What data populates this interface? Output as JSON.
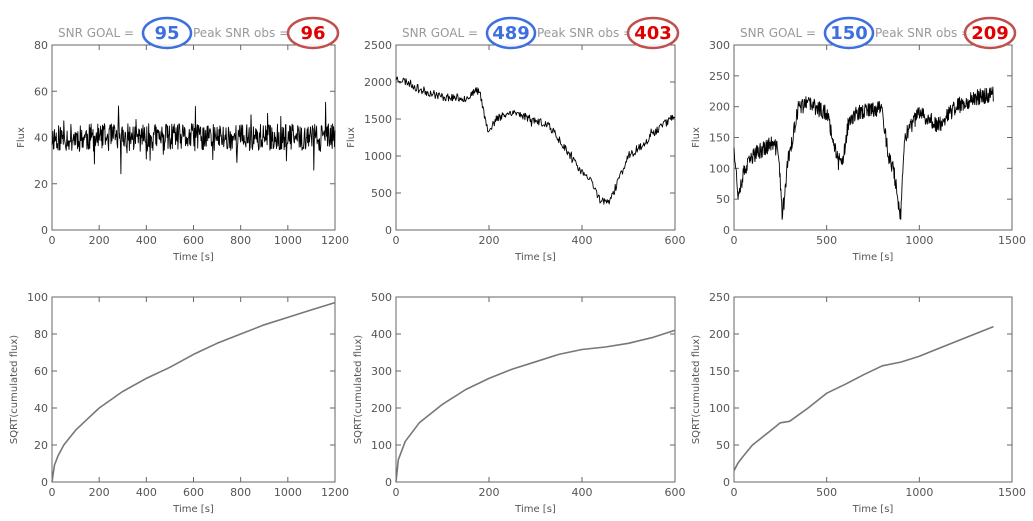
{
  "chart_data": [
    {
      "type": "line",
      "header_prefix": "SNR GOAL",
      "header_goal": "95",
      "header_middle": "Peak SNR obs",
      "header_obs": "96",
      "xlabel": "Time [s]",
      "ylabel": "Flux",
      "xlim": [
        0,
        1200
      ],
      "ylim": [
        0,
        80
      ],
      "xticks": [
        0,
        200,
        400,
        600,
        800,
        1000,
        1200
      ],
      "yticks": [
        0,
        20,
        40,
        60,
        80
      ],
      "gen": {
        "mode": "noise",
        "seed": 11,
        "n": 600,
        "mean": 40,
        "amp": 6,
        "spikeP": 0.05,
        "spikeAmp": 15
      },
      "series": [
        {
          "x": [
            0,
            100,
            200,
            300,
            400,
            500,
            600,
            700,
            800,
            900,
            1000,
            1100,
            1200
          ],
          "y": [
            40,
            40,
            40,
            40,
            40,
            40,
            40,
            40,
            40,
            40,
            40,
            40,
            40
          ]
        }
      ]
    },
    {
      "type": "line",
      "header_prefix": "SNR GOAL",
      "header_goal": "489",
      "header_middle": "Peak SNR obs",
      "header_obs": "403",
      "xlabel": "Time [s]",
      "ylabel": "Flux",
      "xlim": [
        0,
        600
      ],
      "ylim": [
        0,
        2500
      ],
      "xticks": [
        0,
        200,
        400,
        600
      ],
      "yticks": [
        0,
        500,
        1000,
        1500,
        2000,
        2500
      ],
      "gen": {
        "mode": "trend",
        "seed": 23,
        "n": 420,
        "amp": 55,
        "spikeP": 0.01,
        "spikeAmp": 60
      },
      "series": [
        {
          "x": [
            0,
            25,
            50,
            100,
            150,
            180,
            190,
            200,
            215,
            250,
            300,
            330,
            360,
            390,
            420,
            440,
            460,
            480,
            500,
            530,
            560,
            600
          ],
          "y": [
            2050,
            2000,
            1900,
            1800,
            1780,
            1900,
            1550,
            1300,
            1500,
            1600,
            1480,
            1400,
            1150,
            850,
            650,
            400,
            380,
            700,
            1000,
            1150,
            1350,
            1550
          ]
        }
      ]
    },
    {
      "type": "line",
      "header_prefix": "SNR GOAL",
      "header_goal": "150",
      "header_middle": "Peak SNR obs",
      "header_obs": "209",
      "xlabel": "Time [s]",
      "ylabel": "Flux",
      "xlim": [
        0,
        1500
      ],
      "ylim": [
        0,
        300
      ],
      "xticks": [
        0,
        500,
        1000,
        1500
      ],
      "yticks": [
        0,
        50,
        100,
        150,
        200,
        250,
        300
      ],
      "gen": {
        "mode": "trend",
        "seed": 37,
        "n": 700,
        "amp": 13,
        "spikeP": 0.03,
        "spikeAmp": 25
      },
      "series": [
        {
          "x": [
            0,
            20,
            50,
            100,
            200,
            240,
            260,
            290,
            350,
            400,
            500,
            550,
            580,
            600,
            620,
            680,
            800,
            830,
            860,
            900,
            920,
            1000,
            1100,
            1200,
            1300,
            1400
          ],
          "y": [
            140,
            60,
            90,
            120,
            140,
            130,
            20,
            110,
            200,
            205,
            190,
            130,
            100,
            140,
            180,
            190,
            200,
            120,
            100,
            20,
            150,
            190,
            170,
            200,
            215,
            220
          ]
        }
      ]
    },
    {
      "type": "line",
      "xlabel": "Time [s]",
      "ylabel": "SQRT(cumulated flux)",
      "xlim": [
        0,
        1200
      ],
      "ylim": [
        0,
        100
      ],
      "xticks": [
        0,
        200,
        400,
        600,
        800,
        1000,
        1200
      ],
      "yticks": [
        0,
        20,
        40,
        60,
        80,
        100
      ],
      "series": [
        {
          "x": [
            0,
            10,
            25,
            50,
            100,
            150,
            200,
            300,
            400,
            500,
            600,
            700,
            800,
            900,
            1000,
            1100,
            1200
          ],
          "y": [
            0,
            9,
            14,
            20,
            28,
            34,
            40,
            49,
            56,
            62,
            69,
            75,
            80,
            85,
            89,
            93,
            97
          ]
        }
      ]
    },
    {
      "type": "line",
      "xlabel": "Time [s]",
      "ylabel": "SQRT(cumulated flux)",
      "xlim": [
        0,
        600
      ],
      "ylim": [
        0,
        500
      ],
      "xticks": [
        0,
        200,
        400,
        600
      ],
      "yticks": [
        0,
        100,
        200,
        300,
        400,
        500
      ],
      "series": [
        {
          "x": [
            0,
            5,
            20,
            50,
            100,
            150,
            200,
            250,
            300,
            350,
            400,
            450,
            500,
            550,
            600
          ],
          "y": [
            0,
            60,
            110,
            160,
            210,
            250,
            280,
            305,
            325,
            345,
            358,
            365,
            375,
            390,
            410
          ]
        }
      ]
    },
    {
      "type": "line",
      "xlabel": "Time [s]",
      "ylabel": "SQRT(cumulated flux)",
      "xlim": [
        0,
        1500
      ],
      "ylim": [
        0,
        250
      ],
      "xticks": [
        0,
        500,
        1000,
        1500
      ],
      "yticks": [
        0,
        50,
        100,
        150,
        200,
        250
      ],
      "series": [
        {
          "x": [
            0,
            20,
            50,
            100,
            150,
            200,
            250,
            300,
            400,
            500,
            600,
            700,
            800,
            900,
            1000,
            1100,
            1200,
            1300,
            1400
          ],
          "y": [
            15,
            25,
            35,
            50,
            60,
            70,
            80,
            82,
            100,
            120,
            132,
            145,
            157,
            162,
            170,
            180,
            190,
            200,
            210
          ]
        }
      ]
    }
  ]
}
